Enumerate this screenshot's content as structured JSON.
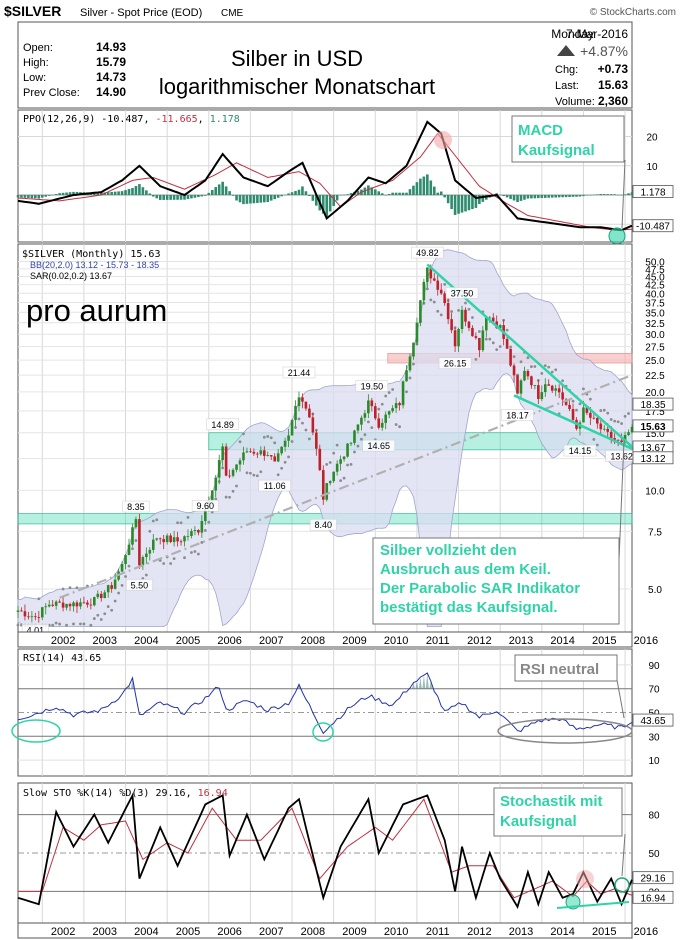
{
  "header": {
    "symbol": "$SILVER",
    "description": "Silver - Spot Price (EOD)",
    "exchange": "CME",
    "source": "© StockCharts.com",
    "day": "Monday",
    "date": "7-Mar-2016",
    "change_pct": "+4.87%",
    "quote": [
      {
        "label": "Open:",
        "value": "14.93"
      },
      {
        "label": "High:",
        "value": "15.79"
      },
      {
        "label": "Low:",
        "value": "14.73"
      },
      {
        "label": "Prev Close:",
        "value": "14.90"
      }
    ],
    "stats": [
      {
        "label": "Chg:",
        "value": "+0.73"
      },
      {
        "label": "Last:",
        "value": "15.63"
      },
      {
        "label": "Volume:",
        "value": "2,360"
      }
    ],
    "headline": [
      "Silber in USD",
      "logarithmischer Monatschart"
    ]
  },
  "brand": "pro aurum",
  "colors": {
    "price_up": "#2a8a2a",
    "price_down": "#c0202a",
    "macd_line": "#000000",
    "signal_line": "#c03040",
    "histogram": "#2e8b6e",
    "annotation": "#2fd3a8",
    "sar": "#8c8c8c",
    "bands_fill": "#d9dcf0",
    "resistance_band": "#f4a7a7"
  },
  "ppo_panel": {
    "legend_name": "PPO(12,26,9)",
    "legend_values": [
      "-10.487",
      "-11.665",
      "1.178"
    ],
    "axis_ticks": [
      "20",
      "10"
    ],
    "value_tags": [
      "1.178",
      "-10.487"
    ],
    "annotation": [
      "MACD",
      "Kaufsignal"
    ]
  },
  "price_panel": {
    "legend": [
      "$SILVER (Monthly) 15.63",
      "BB(20,2.0) 13.12 - 15.73 - 18.35",
      "SAR(0.02,0.2) 13.67"
    ],
    "axis_ticks": [
      "50.0",
      "47.5",
      "45.0",
      "42.5",
      "40.0",
      "37.5",
      "35.0",
      "32.5",
      "30.0",
      "27.5",
      "25.0",
      "22.5",
      "20.0",
      "17.5",
      "15.0",
      "12.5",
      "10.0",
      "7.5",
      "5.0"
    ],
    "value_tags": [
      "18.35",
      "15.63",
      "13.67",
      "13.12"
    ],
    "annotation": [
      "Silber vollzieht den",
      "Ausbruch aus dem Keil.",
      "Der Parabolic SAR Indikator",
      "bestätigt das Kaufsignal."
    ]
  },
  "rsi_panel": {
    "legend": "RSI(14) 43.65",
    "axis_ticks": [
      "90",
      "70",
      "50",
      "30",
      "10"
    ],
    "value_tag": "43.65",
    "annotation": "RSI neutral"
  },
  "sto_panel": {
    "legend_name": "Slow STO %K(14) %D(3)",
    "legend_values": [
      "29.16",
      "16.94"
    ],
    "axis_ticks": [
      "80",
      "50",
      "20"
    ],
    "value_tags": [
      "29.16",
      "16.94"
    ],
    "annotation": [
      "Stochastik mit",
      "Kaufsignal"
    ]
  },
  "x_axis": [
    "2002",
    "2003",
    "2004",
    "2005",
    "2006",
    "2007",
    "2008",
    "2009",
    "2010",
    "2011",
    "2012",
    "2013",
    "2014",
    "2015",
    "2016"
  ],
  "chart_data": {
    "type": "candlestick",
    "scale": "log",
    "title": "Silber in USD logarithmischer Monatschart",
    "interval": "monthly",
    "x_range": [
      "2001-06",
      "2016-03"
    ],
    "y_range": [
      3.8,
      55
    ],
    "grid": true,
    "price_path": [
      [
        "2001-06",
        4.3
      ],
      [
        "2001-11",
        4.1
      ],
      [
        "2002-03",
        4.5
      ],
      [
        "2002-10",
        4.5
      ],
      [
        "2003-04",
        4.6
      ],
      [
        "2003-09",
        5.1
      ],
      [
        "2003-12",
        5.9
      ],
      [
        "2004-03",
        7.5
      ],
      [
        "2004-04",
        8.2
      ],
      [
        "2004-05",
        6.0
      ],
      [
        "2004-10",
        7.2
      ],
      [
        "2005-04",
        7.0
      ],
      [
        "2005-10",
        7.6
      ],
      [
        "2005-12",
        8.8
      ],
      [
        "2006-03",
        11.0
      ],
      [
        "2006-05",
        13.5
      ],
      [
        "2006-06",
        10.8
      ],
      [
        "2006-12",
        13.2
      ],
      [
        "2007-06",
        13.0
      ],
      [
        "2007-08",
        12.0
      ],
      [
        "2007-12",
        14.5
      ],
      [
        "2008-03",
        19.8
      ],
      [
        "2008-06",
        17.0
      ],
      [
        "2008-10",
        9.5
      ],
      [
        "2008-12",
        11.0
      ],
      [
        "2009-06",
        14.0
      ],
      [
        "2009-11",
        18.5
      ],
      [
        "2010-02",
        16.0
      ],
      [
        "2010-08",
        18.5
      ],
      [
        "2010-12",
        29.0
      ],
      [
        "2011-04",
        47.0
      ],
      [
        "2011-08",
        40.5
      ],
      [
        "2011-12",
        28.0
      ],
      [
        "2012-02",
        35.0
      ],
      [
        "2012-07",
        27.5
      ],
      [
        "2012-09",
        34.5
      ],
      [
        "2013-01",
        31.5
      ],
      [
        "2013-06",
        19.5
      ],
      [
        "2013-08",
        23.5
      ],
      [
        "2013-12",
        19.5
      ],
      [
        "2014-02",
        21.5
      ],
      [
        "2014-06",
        20.0
      ],
      [
        "2014-11",
        15.5
      ],
      [
        "2015-01",
        17.5
      ],
      [
        "2015-07",
        15.0
      ],
      [
        "2015-12",
        13.8
      ],
      [
        "2016-03",
        15.63
      ]
    ],
    "labeled_points": [
      {
        "x": "2001-11",
        "y": 4.01,
        "label": "4.01"
      },
      {
        "x": "2004-04",
        "y": 8.35,
        "label": "8.35"
      },
      {
        "x": "2004-05",
        "y": 5.5,
        "label": "5.50"
      },
      {
        "x": "2005-12",
        "y": 9.6,
        "label": "9.60"
      },
      {
        "x": "2006-05",
        "y": 14.89,
        "label": "14.89"
      },
      {
        "x": "2007-08",
        "y": 11.06,
        "label": "11.06"
      },
      {
        "x": "2008-03",
        "y": 21.44,
        "label": "21.44"
      },
      {
        "x": "2008-10",
        "y": 8.4,
        "label": "8.40"
      },
      {
        "x": "2009-12",
        "y": 19.5,
        "label": "19.50"
      },
      {
        "x": "2010-02",
        "y": 14.65,
        "label": "14.65"
      },
      {
        "x": "2011-04",
        "y": 49.82,
        "label": "49.82"
      },
      {
        "x": "2011-12",
        "y": 26.15,
        "label": "26.15"
      },
      {
        "x": "2012-02",
        "y": 37.5,
        "label": "37.50"
      },
      {
        "x": "2013-06",
        "y": 18.17,
        "label": "18.17"
      },
      {
        "x": "2014-12",
        "y": 14.15,
        "label": "14.15"
      },
      {
        "x": "2015-12",
        "y": 13.62,
        "label": "13.62"
      }
    ],
    "zones": [
      {
        "name": "resistance",
        "y": [
          24.5,
          26.2
        ]
      },
      {
        "name": "support_upper",
        "y": [
          13.3,
          15.0
        ]
      },
      {
        "name": "support_lower",
        "y": [
          7.9,
          8.5
        ]
      }
    ],
    "trendlines": [
      {
        "from": [
          "2002-06",
          4.7
        ],
        "to": [
          "2016-03",
          22.5
        ],
        "style": "dash-dot"
      },
      {
        "from": [
          "2011-04",
          49.0
        ],
        "to": [
          "2016-03",
          13.6
        ],
        "style": "solid"
      },
      {
        "from": [
          "2013-05",
          19.5
        ],
        "to": [
          "2016-03",
          13.4
        ],
        "style": "solid"
      }
    ],
    "ppo": {
      "range": [
        -14,
        27
      ],
      "ppo_path": [
        [
          "2001-06",
          -2
        ],
        [
          "2001-12",
          -3
        ],
        [
          "2002-10",
          0
        ],
        [
          "2003-06",
          1
        ],
        [
          "2003-12",
          5
        ],
        [
          "2004-05",
          10
        ],
        [
          "2004-11",
          3
        ],
        [
          "2005-06",
          0
        ],
        [
          "2005-12",
          5
        ],
        [
          "2006-05",
          14
        ],
        [
          "2006-11",
          6
        ],
        [
          "2007-06",
          3
        ],
        [
          "2007-12",
          8
        ],
        [
          "2008-04",
          11
        ],
        [
          "2008-11",
          -8
        ],
        [
          "2009-05",
          -2
        ],
        [
          "2009-11",
          6
        ],
        [
          "2010-04",
          4
        ],
        [
          "2010-10",
          10
        ],
        [
          "2011-04",
          25
        ],
        [
          "2011-08",
          21
        ],
        [
          "2011-12",
          5
        ],
        [
          "2012-06",
          -1
        ],
        [
          "2012-12",
          0
        ],
        [
          "2013-06",
          -8
        ],
        [
          "2013-12",
          -9
        ],
        [
          "2014-06",
          -10
        ],
        [
          "2014-12",
          -11
        ],
        [
          "2015-06",
          -11
        ],
        [
          "2015-12",
          -12
        ],
        [
          "2016-03",
          -10.487
        ]
      ],
      "signal_path": [
        [
          "2001-06",
          -1
        ],
        [
          "2002-06",
          -2
        ],
        [
          "2003-06",
          0
        ],
        [
          "2004-03",
          5
        ],
        [
          "2004-09",
          6
        ],
        [
          "2005-06",
          2
        ],
        [
          "2006-03",
          7
        ],
        [
          "2006-09",
          11
        ],
        [
          "2007-06",
          6
        ],
        [
          "2008-03",
          8
        ],
        [
          "2008-09",
          4
        ],
        [
          "2009-03",
          -4
        ],
        [
          "2009-09",
          1
        ],
        [
          "2010-06",
          5
        ],
        [
          "2011-02",
          13
        ],
        [
          "2011-07",
          21
        ],
        [
          "2012-01",
          12
        ],
        [
          "2012-07",
          3
        ],
        [
          "2013-03",
          -3
        ],
        [
          "2013-09",
          -7
        ],
        [
          "2014-06",
          -9
        ],
        [
          "2015-03",
          -11
        ],
        [
          "2015-10",
          -12
        ],
        [
          "2016-03",
          -11.665
        ]
      ]
    },
    "rsi": {
      "range": [
        0,
        100
      ],
      "levels": [
        70,
        50,
        30
      ],
      "path": [
        [
          "2001-06",
          45
        ],
        [
          "2001-10",
          48
        ],
        [
          "2002-05",
          55
        ],
        [
          "2002-10",
          48
        ],
        [
          "2003-06",
          52
        ],
        [
          "2003-12",
          65
        ],
        [
          "2004-03",
          78
        ],
        [
          "2004-05",
          47
        ],
        [
          "2004-11",
          58
        ],
        [
          "2005-06",
          50
        ],
        [
          "2005-12",
          62
        ],
        [
          "2006-04",
          72
        ],
        [
          "2006-06",
          52
        ],
        [
          "2006-12",
          60
        ],
        [
          "2007-06",
          52
        ],
        [
          "2007-12",
          58
        ],
        [
          "2008-03",
          72
        ],
        [
          "2008-10",
          34
        ],
        [
          "2009-06",
          55
        ],
        [
          "2009-11",
          64
        ],
        [
          "2010-06",
          56
        ],
        [
          "2010-12",
          75
        ],
        [
          "2011-04",
          82
        ],
        [
          "2011-09",
          50
        ],
        [
          "2012-02",
          58
        ],
        [
          "2012-07",
          46
        ],
        [
          "2012-12",
          52
        ],
        [
          "2013-06",
          34
        ],
        [
          "2013-12",
          43
        ],
        [
          "2014-06",
          45
        ],
        [
          "2014-11",
          36
        ],
        [
          "2015-06",
          40
        ],
        [
          "2015-12",
          37
        ],
        [
          "2016-03",
          43.65
        ]
      ]
    },
    "stochastic": {
      "range": [
        0,
        100
      ],
      "levels": [
        80,
        50,
        20
      ],
      "k_path": [
        [
          "2001-06",
          15
        ],
        [
          "2001-12",
          10
        ],
        [
          "2002-05",
          82
        ],
        [
          "2002-10",
          55
        ],
        [
          "2003-04",
          80
        ],
        [
          "2003-08",
          58
        ],
        [
          "2004-03",
          95
        ],
        [
          "2004-05",
          30
        ],
        [
          "2004-11",
          70
        ],
        [
          "2005-04",
          40
        ],
        [
          "2005-12",
          88
        ],
        [
          "2006-05",
          95
        ],
        [
          "2006-07",
          48
        ],
        [
          "2006-12",
          80
        ],
        [
          "2007-05",
          45
        ],
        [
          "2007-12",
          85
        ],
        [
          "2008-03",
          92
        ],
        [
          "2008-10",
          15
        ],
        [
          "2009-03",
          55
        ],
        [
          "2009-11",
          92
        ],
        [
          "2010-02",
          50
        ],
        [
          "2010-09",
          88
        ],
        [
          "2011-04",
          95
        ],
        [
          "2011-09",
          60
        ],
        [
          "2011-12",
          20
        ],
        [
          "2012-02",
          55
        ],
        [
          "2012-06",
          15
        ],
        [
          "2012-10",
          50
        ],
        [
          "2013-01",
          30
        ],
        [
          "2013-06",
          8
        ],
        [
          "2013-09",
          35
        ],
        [
          "2013-12",
          10
        ],
        [
          "2014-03",
          35
        ],
        [
          "2014-07",
          15
        ],
        [
          "2014-10",
          18
        ],
        [
          "2015-01",
          35
        ],
        [
          "2015-05",
          12
        ],
        [
          "2015-09",
          30
        ],
        [
          "2015-12",
          10
        ],
        [
          "2016-03",
          29.16
        ]
      ],
      "d_path": [
        [
          "2001-06",
          20
        ],
        [
          "2002-01",
          20
        ],
        [
          "2002-07",
          70
        ],
        [
          "2003-01",
          60
        ],
        [
          "2003-06",
          72
        ],
        [
          "2004-01",
          75
        ],
        [
          "2004-06",
          45
        ],
        [
          "2005-01",
          58
        ],
        [
          "2005-07",
          50
        ],
        [
          "2006-02",
          85
        ],
        [
          "2006-09",
          60
        ],
        [
          "2007-04",
          60
        ],
        [
          "2008-01",
          85
        ],
        [
          "2008-09",
          30
        ],
        [
          "2009-05",
          55
        ],
        [
          "2010-01",
          70
        ],
        [
          "2010-06",
          60
        ],
        [
          "2011-03",
          92
        ],
        [
          "2011-11",
          35
        ],
        [
          "2012-04",
          40
        ],
        [
          "2012-11",
          40
        ],
        [
          "2013-05",
          15
        ],
        [
          "2013-11",
          22
        ],
        [
          "2014-04",
          28
        ],
        [
          "2014-10",
          16
        ],
        [
          "2015-02",
          28
        ],
        [
          "2015-06",
          18
        ],
        [
          "2015-10",
          22
        ],
        [
          "2016-03",
          16.94
        ]
      ]
    }
  }
}
